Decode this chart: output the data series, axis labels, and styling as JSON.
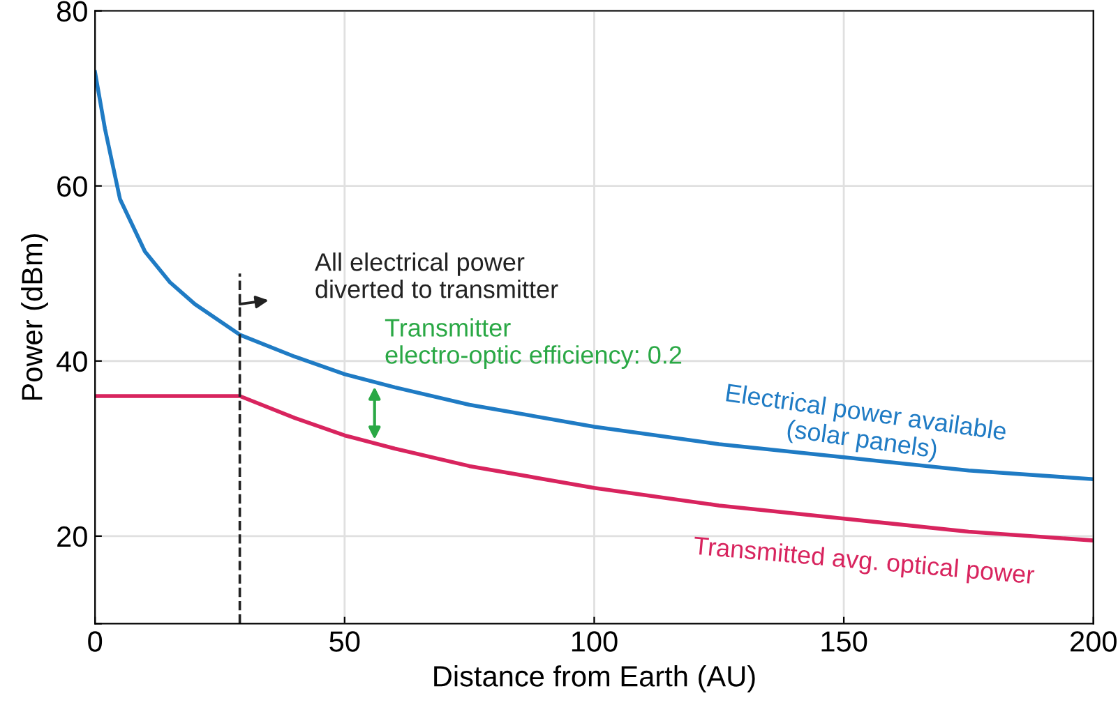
{
  "chart_data": {
    "type": "line",
    "xlabel": "Distance from Earth (AU)",
    "ylabel": "Power (dBm)",
    "xlim": [
      0,
      200
    ],
    "ylim": [
      10,
      80
    ],
    "xticks": [
      0,
      50,
      100,
      150,
      200
    ],
    "yticks": [
      {
        "value": 10,
        "label": null
      },
      20,
      40,
      60,
      80
    ],
    "grid": true,
    "legend": false,
    "line_style": "solid",
    "marker": "none",
    "series": [
      {
        "name": "Electrical power available\n(solar panels)",
        "color": "#1f7bc4",
        "x": [
          0,
          2,
          5,
          10,
          15,
          20,
          29,
          40,
          50,
          60,
          75,
          100,
          125,
          150,
          175,
          200
        ],
        "values": [
          73,
          66.5,
          58.5,
          52.5,
          49,
          46.5,
          43,
          40.5,
          38.5,
          37,
          35,
          32.5,
          30.5,
          29,
          27.5,
          26.5
        ]
      },
      {
        "name": "Transmitted avg. optical power",
        "color": "#d8245e",
        "x": [
          0,
          29,
          40,
          50,
          60,
          75,
          100,
          125,
          150,
          175,
          200
        ],
        "values": [
          36,
          36,
          33.5,
          31.5,
          30,
          28,
          25.5,
          23.5,
          22,
          20.5,
          19.5
        ]
      }
    ],
    "ref_lines": [
      {
        "axis": "x",
        "value": 29,
        "label": null,
        "color": "#222222",
        "line_style": "dashed"
      }
    ],
    "annotations": [
      {
        "text": "All electrical power\ndiverted to transmitter",
        "x": 29,
        "y": 46.5
      },
      {
        "text": "Transmitter\nelectro-optic efficiency: 0.2",
        "x": 56,
        "y": 37.5
      }
    ]
  }
}
